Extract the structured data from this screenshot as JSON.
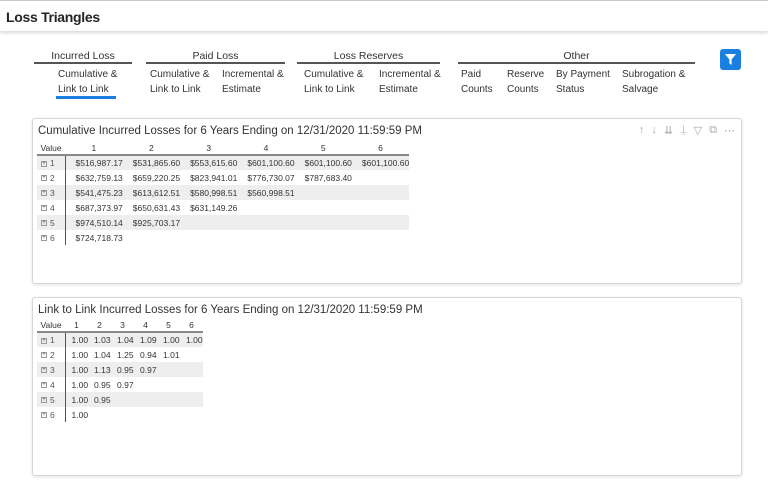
{
  "header": {
    "title": "Loss Triangles"
  },
  "nav": {
    "groups": [
      {
        "label": "Incurred Loss",
        "items": [
          "Cumulative & Link to Link"
        ]
      },
      {
        "label": "Paid Loss",
        "items": [
          "Cumulative & Link to Link",
          "Incremental & Estimate"
        ]
      },
      {
        "label": "Loss Reserves",
        "items": [
          "Cumulative & Link to Link",
          "Incremental & Estimate"
        ]
      },
      {
        "label": "Other",
        "items": [
          "Paid Counts",
          "Reserve Counts",
          "By Payment Status",
          "Subrogation & Salvage"
        ]
      }
    ],
    "active": "Incurred Loss / Cumulative & Link to Link",
    "filter_icon": "filter-icon",
    "accent": "#1a7fe0"
  },
  "cumulative": {
    "title": "Cumulative Incurred Losses for 6 Years Ending on 12/31/2020 11:59:59 PM",
    "columns": [
      "Value",
      "1",
      "2",
      "3",
      "4",
      "5",
      "6"
    ],
    "rows": [
      [
        "1",
        "$516,987.17",
        "$531,865.60",
        "$553,615.60",
        "$601,100.60",
        "$601,100.60",
        "$601,100.60"
      ],
      [
        "2",
        "$632,759.13",
        "$659,220.25",
        "$823,941.01",
        "$776,730.07",
        "$787,683.40",
        ""
      ],
      [
        "3",
        "$541,475.23",
        "$613,612.51",
        "$580,998.51",
        "$560,998.51",
        "",
        ""
      ],
      [
        "4",
        "$687,373.97",
        "$650,631.43",
        "$631,149.26",
        "",
        "",
        ""
      ],
      [
        "5",
        "$974,510.14",
        "$925,703.17",
        "",
        "",
        "",
        ""
      ],
      [
        "6",
        "$724,718.73",
        "",
        "",
        "",
        "",
        ""
      ]
    ]
  },
  "link": {
    "title": "Link to Link Incurred Losses for 6 Years Ending on 12/31/2020 11:59:59 PM",
    "columns": [
      "Value",
      "1",
      "2",
      "3",
      "4",
      "5",
      "6"
    ],
    "rows": [
      [
        "1",
        "1.00",
        "1.03",
        "1.04",
        "1.09",
        "1.00",
        "1.00"
      ],
      [
        "2",
        "1.00",
        "1.04",
        "1.25",
        "0.94",
        "1.01",
        ""
      ],
      [
        "3",
        "1.00",
        "1.13",
        "0.95",
        "0.97",
        "",
        ""
      ],
      [
        "4",
        "1.00",
        "0.95",
        "0.97",
        "",
        "",
        ""
      ],
      [
        "5",
        "1.00",
        "0.95",
        "",
        "",
        "",
        ""
      ],
      [
        "6",
        "1.00",
        "",
        "",
        "",
        "",
        ""
      ]
    ]
  },
  "visual_tools": [
    "sort-up-icon",
    "sort-down-icon",
    "expand-all-icon",
    "drill-icon",
    "filter-icon",
    "focus-mode-icon",
    "more-options-icon"
  ]
}
